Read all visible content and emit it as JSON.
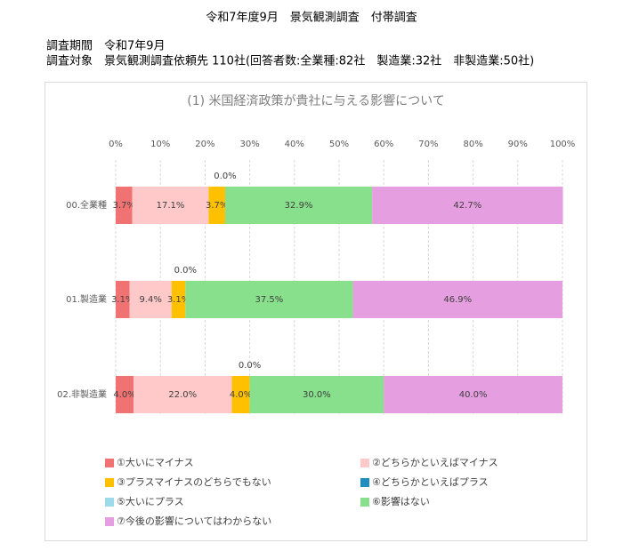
{
  "header": {
    "title": "令和7年度9月　景気観測調査　付帯調査",
    "period": "調査期間　令和7年9月",
    "target": "調査対象　景気観測調査依頼先 110社(回答者数:全業種:82社　製造業:32社　非製造業:50社)"
  },
  "chart_data": {
    "type": "stacked-barh",
    "title": "(1) 米国経済政策が貴社に与える影響について",
    "categories": [
      "00.全業種",
      "01.製造業",
      "02.非製造業"
    ],
    "xlim": [
      0,
      100
    ],
    "xticks": [
      {
        "value": 0,
        "label": "0%"
      },
      {
        "value": 10,
        "label": "10%"
      },
      {
        "value": 20,
        "label": "20%"
      },
      {
        "value": 30,
        "label": "30%"
      },
      {
        "value": 40,
        "label": "40%"
      },
      {
        "value": 50,
        "label": "50%"
      },
      {
        "value": 60,
        "label": "60%"
      },
      {
        "value": 70,
        "label": "70%"
      },
      {
        "value": 80,
        "label": "80%"
      },
      {
        "value": 90,
        "label": "90%"
      },
      {
        "value": 100,
        "label": "100%"
      }
    ],
    "grid": true,
    "legend": "bottom",
    "series": [
      {
        "name": "①大いにマイナス",
        "color": "#f07272",
        "values": [
          3.7,
          3.1,
          4.0
        ],
        "value_labels": [
          "3.7%",
          "3.1%",
          "4.0%"
        ]
      },
      {
        "name": "②どちらかといえばマイナス",
        "color": "#ffc9c9",
        "values": [
          17.1,
          9.4,
          22.0
        ],
        "value_labels": [
          "17.1%",
          "9.4%",
          "22.0%"
        ]
      },
      {
        "name": "③プラスマイナスのどちらでもない",
        "color": "#ffc000",
        "values": [
          3.7,
          3.1,
          4.0
        ],
        "value_labels": [
          "3.7%",
          "3.1%",
          "4.0%"
        ]
      },
      {
        "name": "④どちらかといえばプラス",
        "color": "#1f8fc0",
        "values": [
          0.0,
          0.0,
          0.0
        ],
        "value_labels": [
          "0.0%",
          "0.0%",
          "0.0%"
        ]
      },
      {
        "name": "⑤大いにプラス",
        "color": "#9edbea",
        "values": [
          0,
          0,
          0
        ],
        "value_labels": [
          null,
          null,
          null
        ]
      },
      {
        "name": "⑥影響はない",
        "color": "#88e08c",
        "values": [
          32.9,
          37.5,
          30.0
        ],
        "value_labels": [
          "32.9%",
          "37.5%",
          "30.0%"
        ]
      },
      {
        "name": "⑦今後の影響についてはわからない",
        "color": "#e59ee0",
        "values": [
          42.7,
          46.9,
          40.0
        ],
        "value_labels": [
          "42.7%",
          "46.9%",
          "40.0%"
        ]
      }
    ]
  }
}
